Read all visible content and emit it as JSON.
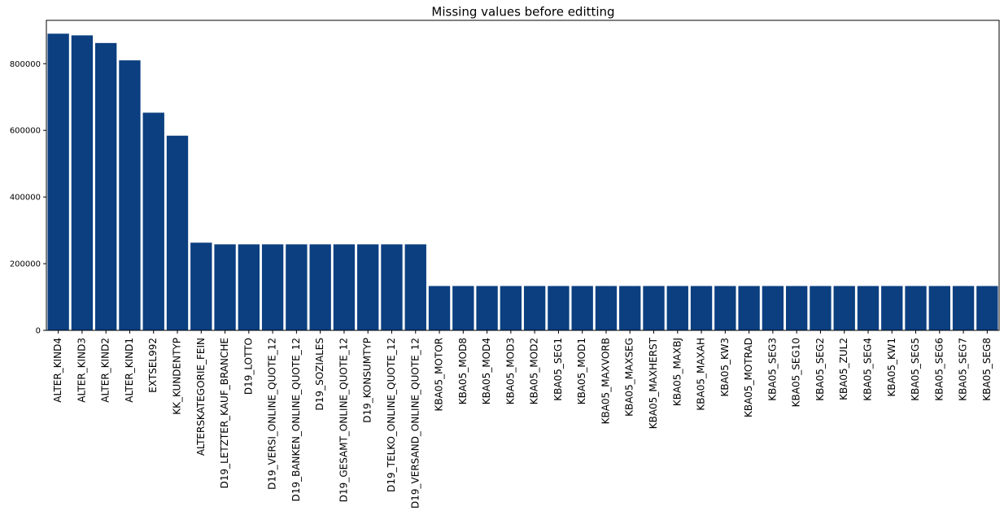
{
  "chart_data": {
    "type": "bar",
    "title": "Missing values before editting",
    "xlabel": "",
    "ylabel": "",
    "ylim": [
      0,
      930000
    ],
    "yticks": [
      0,
      200000,
      400000,
      600000,
      800000
    ],
    "ytick_labels": [
      "0",
      "200000",
      "400000",
      "600000",
      "800000"
    ],
    "bar_color": "#0b3f80",
    "grid": false,
    "legend": false,
    "categories": [
      "ALTER_KIND4",
      "ALTER_KIND3",
      "ALTER_KIND2",
      "ALTER_KIND1",
      "EXTSEL992",
      "KK_KUNDENTYP",
      "ALTERSKATEGORIE_FEIN",
      "D19_LETZTER_KAUF_BRANCHE",
      "D19_LOTTO",
      "D19_VERSI_ONLINE_QUOTE_12",
      "D19_BANKEN_ONLINE_QUOTE_12",
      "D19_SOZIALES",
      "D19_GESAMT_ONLINE_QUOTE_12",
      "D19_KONSUMTYP",
      "D19_TELKO_ONLINE_QUOTE_12",
      "D19_VERSAND_ONLINE_QUOTE_12",
      "KBA05_MOTOR",
      "KBA05_MOD8",
      "KBA05_MOD4",
      "KBA05_MOD3",
      "KBA05_MOD2",
      "KBA05_SEG1",
      "KBA05_MOD1",
      "KBA05_MAXVORB",
      "KBA05_MAXSEG",
      "KBA05_MAXHERST",
      "KBA05_MAXBJ",
      "KBA05_MAXAH",
      "KBA05_KW3",
      "KBA05_MOTRAD",
      "KBA05_SEG3",
      "KBA05_SEG10",
      "KBA05_SEG2",
      "KBA05_ZUL2",
      "KBA05_SEG4",
      "KBA05_KW1",
      "KBA05_SEG5",
      "KBA05_SEG6",
      "KBA05_SEG7",
      "KBA05_SEG8"
    ],
    "values": [
      890000,
      885000,
      862000,
      810000,
      653000,
      584000,
      263000,
      258000,
      258000,
      258000,
      258000,
      258000,
      258000,
      258000,
      258000,
      258000,
      133000,
      133000,
      133000,
      133000,
      133000,
      133000,
      133000,
      133000,
      133000,
      133000,
      133000,
      133000,
      133000,
      133000,
      133000,
      133000,
      133000,
      133000,
      133000,
      133000,
      133000,
      133000,
      133000,
      133000
    ]
  }
}
